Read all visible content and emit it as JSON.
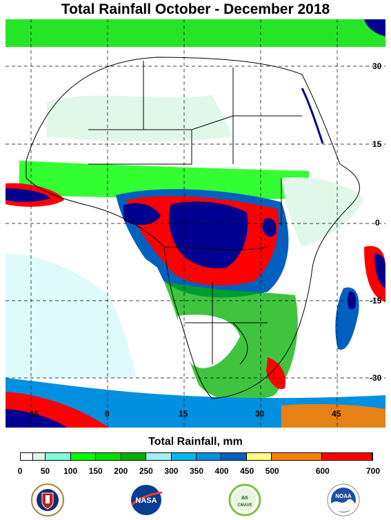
{
  "title": "Total Rainfall October - December 2018",
  "map": {
    "lat_labels": [
      "30",
      "15",
      "0",
      "-15",
      "-30"
    ],
    "lon_labels": [
      "-15",
      "0",
      "15",
      "30",
      "45"
    ]
  },
  "legend": {
    "title": "Total Rainfall, mm",
    "colors": [
      "#ffffff",
      "#e0f8e8",
      "#80ffd8",
      "#00ff00",
      "#00e000",
      "#00b000",
      "#a0f0f8",
      "#00b8f0",
      "#0090e0",
      "#0060c0",
      "#ffff80",
      "#ff8000",
      "#ff0000",
      "#000090"
    ],
    "ticks": [
      "0",
      "50",
      "100",
      "150",
      "200",
      "250",
      "300",
      "350",
      "400",
      "450",
      "500",
      "600",
      "700"
    ]
  },
  "logos": [
    {
      "name": "dha-logo",
      "icon": "defense-health-agency-seal"
    },
    {
      "name": "nasa-logo",
      "icon": "nasa-meatball",
      "text": "NASA"
    },
    {
      "name": "usda-logo",
      "icon": "usda-cmave-seal",
      "text": "CMAVE"
    },
    {
      "name": "noaa-logo",
      "icon": "noaa-seal",
      "text": "NOAA"
    }
  ]
}
